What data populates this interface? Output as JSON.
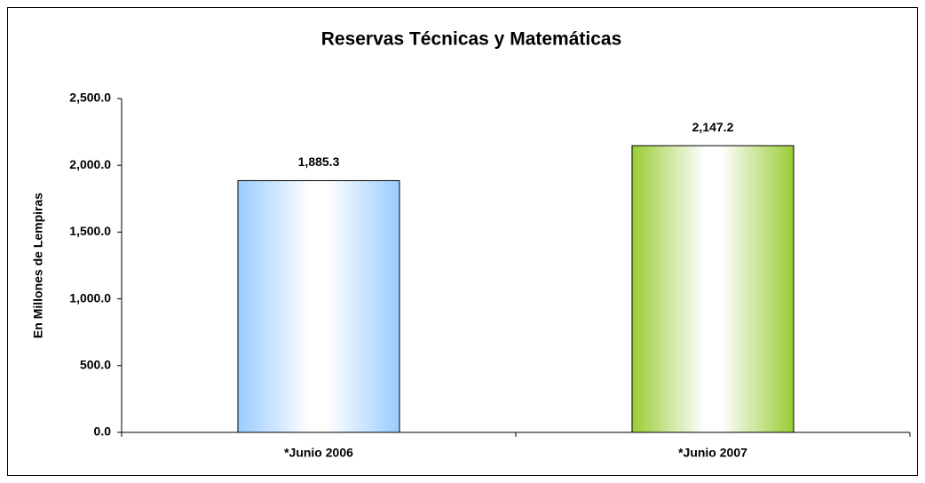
{
  "chart_data": {
    "type": "bar",
    "title": "Reservas Técnicas y Matemáticas",
    "y_axis_label": "En Millones de Lempiras",
    "categories": [
      "*Junio 2006",
      "*Junio 2007"
    ],
    "values": [
      1885.3,
      2147.2
    ],
    "value_labels": [
      "1,885.3",
      "2,147.2"
    ],
    "colors": [
      "#99ccff",
      "#99cc33"
    ],
    "ylim": [
      0,
      2500
    ],
    "yticks": [
      {
        "value": 0,
        "label": "0.0"
      },
      {
        "value": 500,
        "label": "500.0"
      },
      {
        "value": 1000,
        "label": "1,000.0"
      },
      {
        "value": 1500,
        "label": "1,500.0"
      },
      {
        "value": 2000,
        "label": "2,000.0"
      },
      {
        "value": 2500,
        "label": "2,500.0"
      }
    ],
    "grid": false
  }
}
